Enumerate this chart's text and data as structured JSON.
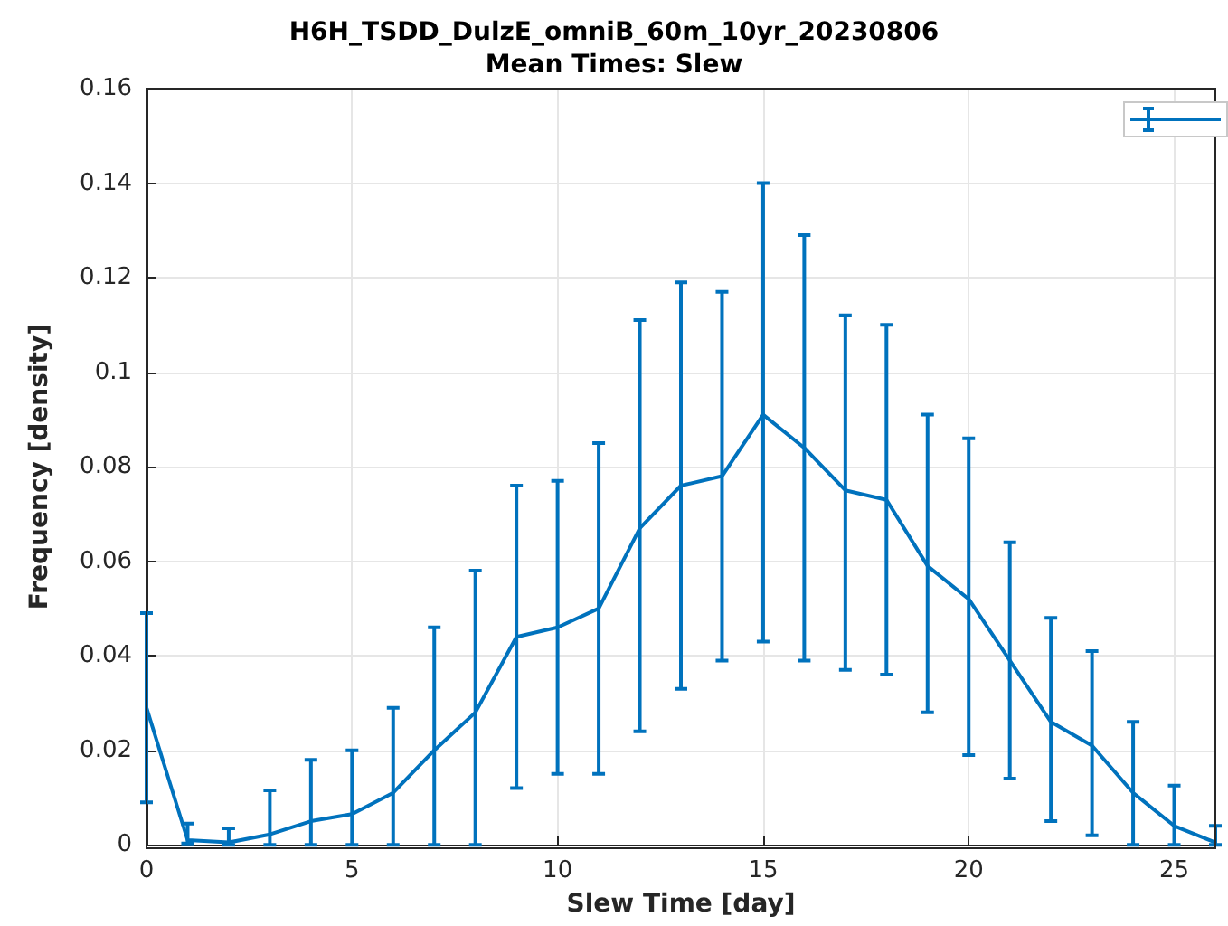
{
  "chart_data": {
    "type": "line",
    "title": "H6H_TSDD_DulzE_omniB_60m_10yr_20230806",
    "subtitle": "Mean Times: Slew",
    "xlabel": "Slew Time [day]",
    "ylabel": "Frequency [density]",
    "x": [
      0,
      1,
      2,
      3,
      4,
      5,
      6,
      7,
      8,
      9,
      10,
      11,
      12,
      13,
      14,
      15,
      16,
      17,
      18,
      19,
      20,
      21,
      22,
      23,
      24,
      25,
      26
    ],
    "series": [
      {
        "color": "#0072bd",
        "values": [
          0.029,
          0.001,
          0.0005,
          0.0022,
          0.005,
          0.0065,
          0.011,
          0.02,
          0.028,
          0.044,
          0.046,
          0.05,
          0.067,
          0.076,
          0.078,
          0.091,
          0.084,
          0.075,
          0.073,
          0.059,
          0.052,
          0.039,
          0.026,
          0.021,
          0.011,
          0.004,
          0.0005
        ],
        "errors": [
          [
            0.009,
            0.049
          ],
          [
            0.0003,
            0.0045
          ],
          [
            0,
            0.0035
          ],
          [
            0,
            0.0115
          ],
          [
            0,
            0.018
          ],
          [
            0,
            0.02
          ],
          [
            0,
            0.029
          ],
          [
            0,
            0.046
          ],
          [
            0,
            0.058
          ],
          [
            0.012,
            0.076
          ],
          [
            0.015,
            0.077
          ],
          [
            0.015,
            0.085
          ],
          [
            0.024,
            0.111
          ],
          [
            0.033,
            0.119
          ],
          [
            0.039,
            0.117
          ],
          [
            0.043,
            0.14
          ],
          [
            0.039,
            0.129
          ],
          [
            0.037,
            0.112
          ],
          [
            0.036,
            0.11
          ],
          [
            0.028,
            0.091
          ],
          [
            0.019,
            0.086
          ],
          [
            0.014,
            0.064
          ],
          [
            0.005,
            0.048
          ],
          [
            0.002,
            0.041
          ],
          [
            0,
            0.026
          ],
          [
            0,
            0.0125
          ],
          [
            0,
            0.004
          ]
        ]
      }
    ],
    "xlim": [
      0,
      26
    ],
    "xticks": [
      0,
      5,
      10,
      15,
      20,
      25
    ],
    "ylim": [
      0,
      0.16
    ],
    "yticks": [
      0,
      0.02,
      0.04,
      0.06,
      0.08,
      0.1,
      0.12,
      0.14,
      0.16
    ],
    "grid": true,
    "marker": "none",
    "line_style": "solid"
  }
}
